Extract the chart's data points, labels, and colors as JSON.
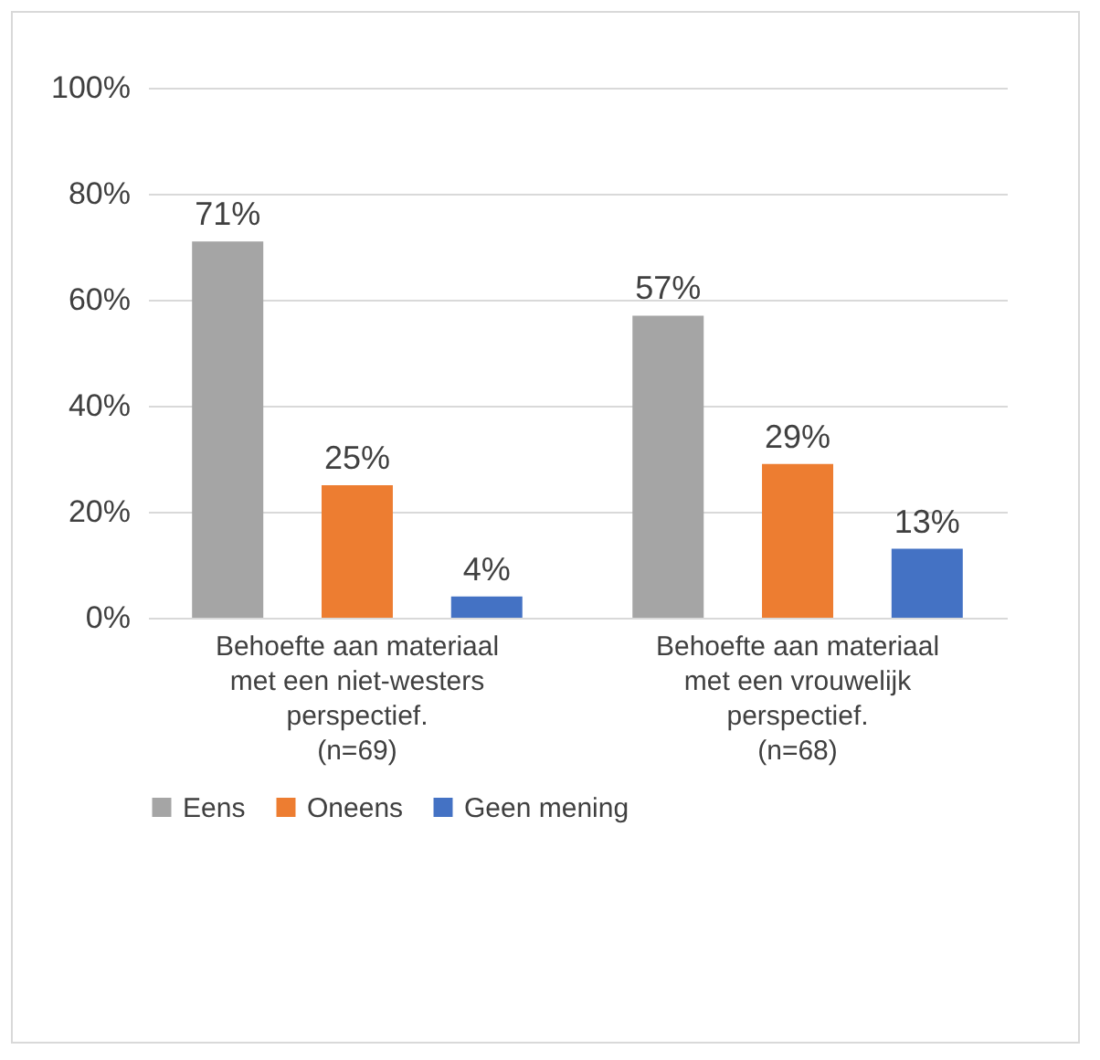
{
  "chart_data": {
    "type": "bar",
    "categories": [
      "Behoefte aan materiaal met een niet-westers perspectief. (n=69)",
      "Behoefte aan materiaal met een vrouwelijk perspectief. (n=68)"
    ],
    "series": [
      {
        "name": "Eens",
        "color": "#a5a5a5",
        "values": [
          71,
          57
        ],
        "value_labels": [
          "71%",
          "57%"
        ]
      },
      {
        "name": "Oneens",
        "color": "#ed7d31",
        "values": [
          25,
          29
        ],
        "value_labels": [
          "25%",
          "29%"
        ]
      },
      {
        "name": "Geen mening",
        "color": "#4472c4",
        "values": [
          4,
          13
        ],
        "value_labels": [
          "4%",
          "13%"
        ]
      }
    ],
    "ylim": [
      0,
      100
    ],
    "yticks": [
      {
        "value": 0,
        "label": "0%"
      },
      {
        "value": 20,
        "label": "20%"
      },
      {
        "value": 40,
        "label": "40%"
      },
      {
        "value": 60,
        "label": "60%"
      },
      {
        "value": 80,
        "label": "80%"
      },
      {
        "value": 100,
        "label": "100%"
      }
    ],
    "grid": "y",
    "legend": "bottom"
  }
}
